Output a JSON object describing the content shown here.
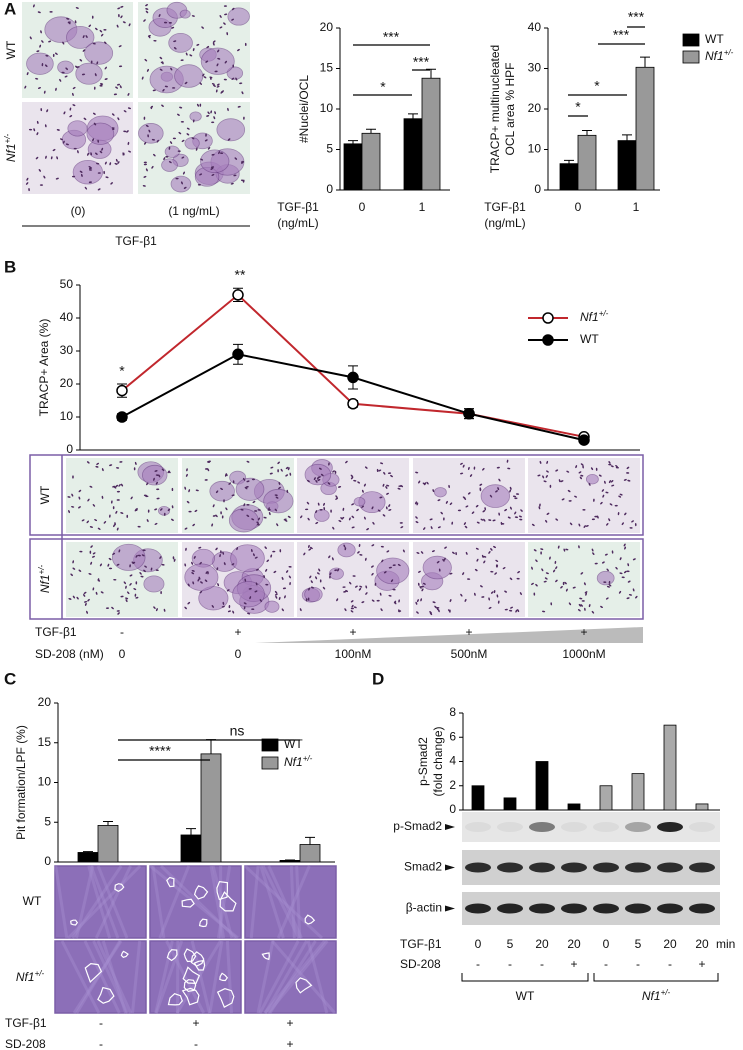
{
  "panel_labels": [
    "A",
    "B",
    "C",
    "D"
  ],
  "panel_a": {
    "row_labels": [
      "WT",
      "Nf1+/-"
    ],
    "column_labels": [
      "(0)",
      "(1 ng/mL)"
    ],
    "treatment": "TGF-β1"
  },
  "panel_b": {
    "row_labels": [
      "WT",
      "Nf1+/-"
    ],
    "treatments": [
      {
        "name": "TGF-β1",
        "values": [
          "-",
          "+",
          "+",
          "+",
          "+"
        ]
      },
      {
        "name": "SD-208 (nM)",
        "values": [
          "0",
          "0",
          "100nM",
          "500nM",
          "1000nM"
        ]
      }
    ]
  },
  "panel_c": {
    "row_labels": [
      "WT",
      "Nf1+/-"
    ],
    "treatments": [
      {
        "name": "TGF-β1",
        "values": [
          "-",
          "+",
          "+"
        ]
      },
      {
        "name": "SD-208",
        "values": [
          "-",
          "-",
          "+"
        ]
      }
    ]
  },
  "panel_d": {
    "blot_labels": [
      "p-Smad2",
      "Smad2",
      "β-actin"
    ],
    "treatments": [
      {
        "name": "TGF-β1",
        "values": [
          "0",
          "5",
          "20",
          "20",
          "0",
          "5",
          "20",
          "20"
        ],
        "unit": "min"
      },
      {
        "name": "SD-208",
        "values": [
          "-",
          "-",
          "-",
          "+",
          "-",
          "-",
          "-",
          "+"
        ]
      }
    ],
    "groups": [
      "WT",
      "Nf1+/-"
    ]
  },
  "chart_data": [
    {
      "type": "bar",
      "ylabel": "#Nuclei/OCL",
      "xlabel": [
        "TGF-β1",
        "(ng/mL)"
      ],
      "categories": [
        "0",
        "1"
      ],
      "series": [
        {
          "color": "#000000",
          "values": [
            5.7,
            8.8
          ],
          "errors": [
            0.4,
            0.6
          ]
        },
        {
          "color": "#999999",
          "values": [
            7.0,
            13.8
          ],
          "errors": [
            0.5,
            1.1
          ]
        }
      ],
      "ylim": [
        0,
        20
      ],
      "yticks": [
        0,
        5,
        10,
        15,
        20
      ],
      "annotations": [
        "*",
        "***",
        "***"
      ]
    },
    {
      "type": "bar",
      "ylabel": [
        "TRACP+ multinucleated",
        "OCL area % HPF"
      ],
      "xlabel": [
        "TGF-β1",
        "(ng/mL)"
      ],
      "categories": [
        "0",
        "1"
      ],
      "series": [
        {
          "name": "WT",
          "color": "#000000",
          "values": [
            6.5,
            12.2
          ],
          "errors": [
            0.8,
            1.4
          ]
        },
        {
          "name": "Nf1+/-",
          "color": "#999999",
          "values": [
            13.5,
            30.3
          ],
          "errors": [
            1.2,
            2.5
          ]
        }
      ],
      "ylim": [
        0,
        40
      ],
      "yticks": [
        0,
        10,
        20,
        30,
        40
      ],
      "annotations": [
        "*",
        "*",
        "***",
        "***"
      ],
      "legend": "right"
    },
    {
      "type": "line",
      "ylabel": "TRACP+ Area (%)",
      "categories": [
        null,
        null,
        null,
        null,
        null
      ],
      "series": [
        {
          "name": "Nf1+/-",
          "color": "#c1272d",
          "marker": "open",
          "values": [
            18,
            47,
            14,
            11,
            4
          ],
          "errors": [
            2,
            2,
            1,
            1.5,
            0.5
          ]
        },
        {
          "name": "WT",
          "color": "#000000",
          "marker": "filled",
          "values": [
            10,
            29,
            22,
            11,
            3
          ],
          "errors": [
            1,
            3,
            3.5,
            1.5,
            0.5
          ]
        }
      ],
      "ylim": [
        0,
        50
      ],
      "yticks": [
        0,
        10,
        20,
        30,
        40,
        50
      ],
      "annotations": [
        "*",
        "**"
      ],
      "legend": "upper right"
    },
    {
      "type": "bar",
      "ylabel": "Pit formation/LPF (%)",
      "categories": [
        null,
        null,
        null
      ],
      "series": [
        {
          "name": "WT",
          "color": "#000000",
          "values": [
            1.2,
            3.4,
            0.2
          ],
          "errors": [
            0.1,
            0.8,
            0.05
          ]
        },
        {
          "name": "Nf1+/-",
          "color": "#999999",
          "values": [
            4.6,
            13.6,
            2.2
          ],
          "errors": [
            0.5,
            1.8,
            0.9
          ]
        }
      ],
      "ylim": [
        0,
        20
      ],
      "yticks": [
        0,
        5,
        10,
        15,
        20
      ],
      "annotations": [
        "****",
        "ns"
      ],
      "legend": "upper right"
    },
    {
      "type": "bar",
      "ylabel": [
        "p-Smad2",
        "(fold change)"
      ],
      "categories": [
        null,
        null,
        null,
        null,
        null,
        null,
        null,
        null
      ],
      "values": [
        2,
        1,
        4,
        0.5,
        2,
        3,
        7,
        0.5
      ],
      "colors": [
        "#000000",
        "#000000",
        "#000000",
        "#000000",
        "#aaaaaa",
        "#aaaaaa",
        "#aaaaaa",
        "#aaaaaa"
      ],
      "ylim": [
        0,
        8
      ],
      "yticks": [
        0,
        2,
        4,
        6,
        8
      ]
    }
  ]
}
